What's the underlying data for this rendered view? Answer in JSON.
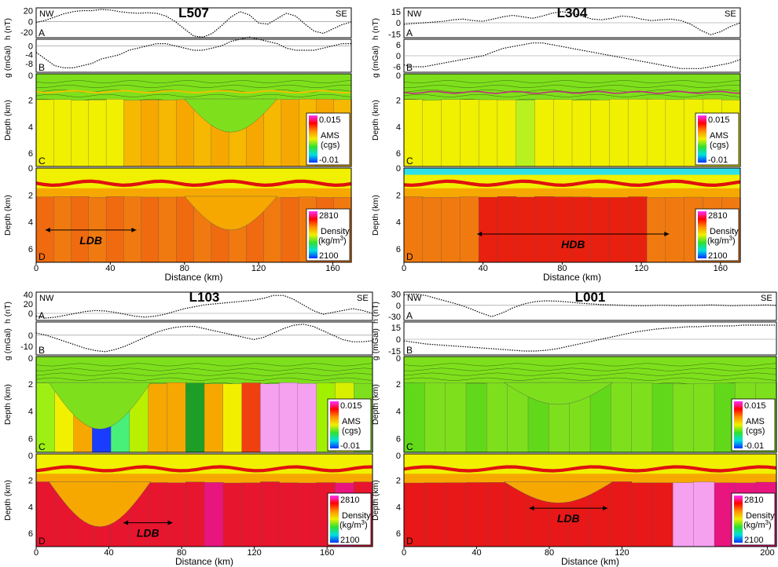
{
  "figure": {
    "x_axis_label": "Distance (km)",
    "y_labels": {
      "mag": "h (nT)",
      "grav": "g (mGal)",
      "depth": "Depth (km)"
    },
    "direction": {
      "left": "NW",
      "right": "SE"
    },
    "panel_letters": [
      "A",
      "B",
      "C",
      "D"
    ],
    "ams_legend": {
      "max": "0.015",
      "title": "AMS",
      "unit": "(cgs)",
      "min": "-0.01"
    },
    "density_legend": {
      "max": "2810",
      "title": "Density",
      "unit": "(kg/m",
      "unit_sup": "3",
      "unit_end": ")",
      "min": "2100"
    },
    "colors": {
      "ams_bg": "#7ee01c",
      "layer_yellow": "#f0f000",
      "layer_orange": "#f6a800",
      "dens_red": "#ee1a10",
      "dens_orange": "#f07a10",
      "dens_magenta": "#e8157e",
      "dens_pink": "#f6a0f0"
    }
  },
  "chart_data": [
    {
      "type": "profile",
      "title": "L507",
      "mag_ticks": [
        "20",
        "0",
        "-20"
      ],
      "grav_ticks": [
        "0",
        "-4",
        "-8"
      ],
      "depth_ticks": [
        "2",
        "4",
        "6"
      ],
      "depth_ticks_d": [
        "0",
        "2",
        "4",
        "6"
      ],
      "x_ticks": [
        "0",
        "40",
        "80",
        "120",
        "160"
      ],
      "mag_nT": [
        -2,
        2,
        8,
        14,
        18,
        20,
        20,
        22,
        21,
        18,
        16,
        15,
        16,
        15,
        10,
        0,
        -14,
        -27,
        -29,
        -22,
        -8,
        8,
        18,
        12,
        -3,
        -5,
        5,
        15,
        10,
        -5,
        -18,
        -22,
        -14,
        -6,
        -1
      ],
      "grav_mGal": [
        -3,
        -6,
        -9,
        -10,
        -10,
        -9,
        -8,
        -6,
        -5,
        -4,
        -2,
        -1,
        0,
        1,
        1,
        0,
        -1,
        -2,
        -2,
        -1,
        0,
        2,
        3,
        4,
        3,
        2,
        1,
        -1,
        -2,
        -2,
        -2,
        -1,
        0,
        1,
        1
      ],
      "zone": {
        "label": "LDB",
        "from_km": 5,
        "to_km": 54,
        "depth_km": 4.6
      }
    },
    {
      "type": "profile",
      "title": "L304",
      "mag_ticks": [
        "15",
        "0",
        "-15"
      ],
      "grav_ticks": [
        "6",
        "0",
        "-6"
      ],
      "depth_ticks": [
        "2",
        "4",
        "6"
      ],
      "depth_ticks_d": [
        "0",
        "2",
        "4",
        "6"
      ],
      "x_ticks": [
        "0",
        "40",
        "80",
        "120",
        "160"
      ],
      "mag_nT": [
        -2,
        -1,
        0,
        1,
        2,
        4,
        5,
        3,
        2,
        5,
        8,
        10,
        8,
        6,
        9,
        13,
        15,
        13,
        9,
        5,
        4,
        6,
        9,
        8,
        5,
        3,
        4,
        5,
        3,
        -2,
        -10,
        -16,
        -12,
        -5,
        0
      ],
      "grav_mGal": [
        -5,
        -6,
        -6,
        -5,
        -4,
        -3,
        -2,
        -1,
        0,
        2,
        4,
        5,
        6,
        7,
        7,
        6,
        5,
        4,
        3,
        2,
        1,
        0,
        -1,
        -2,
        -3,
        -4,
        -5,
        -6,
        -7,
        -7,
        -7,
        -6,
        -5,
        -4,
        -2
      ],
      "zone": {
        "label": "HDB",
        "from_km": 37,
        "to_km": 134,
        "depth_km": 4.9
      }
    },
    {
      "type": "profile",
      "title": "L103",
      "mag_ticks": [
        "40",
        "20",
        "0"
      ],
      "grav_ticks": [
        "0",
        "-10"
      ],
      "depth_ticks": [
        "2",
        "4",
        "6"
      ],
      "depth_ticks_d": [
        "2",
        "4",
        "6"
      ],
      "x_ticks": [
        "0",
        "40",
        "80",
        "120",
        "160"
      ],
      "mag_nT": [
        -6,
        -10,
        -8,
        -4,
        0,
        4,
        6,
        5,
        2,
        -2,
        -6,
        -8,
        -6,
        -2,
        4,
        10,
        14,
        18,
        20,
        22,
        24,
        26,
        28,
        32,
        38,
        38,
        30,
        18,
        6,
        -2,
        2,
        6,
        10,
        6,
        0
      ],
      "grav_mGal": [
        2,
        0,
        -3,
        -6,
        -9,
        -12,
        -14,
        -15,
        -13,
        -10,
        -6,
        -2,
        2,
        5,
        7,
        8,
        8,
        6,
        4,
        2,
        0,
        -2,
        -4,
        -2,
        2,
        6,
        9,
        10,
        8,
        4,
        0,
        -4,
        -6,
        -6,
        -5
      ],
      "zone": {
        "label": "LDB",
        "from_km": 48,
        "to_km": 75,
        "depth_km": 5.2
      }
    },
    {
      "type": "profile",
      "title": "L001",
      "mag_ticks": [
        "30",
        "0",
        "-30"
      ],
      "grav_ticks": [
        "15",
        "0",
        "-15"
      ],
      "depth_ticks": [
        "2",
        "4",
        "6"
      ],
      "depth_ticks_d": [
        "2",
        "4",
        "6"
      ],
      "x_ticks": [
        "0",
        "40",
        "80",
        "120",
        "200"
      ],
      "mag_nT": [
        28,
        30,
        26,
        18,
        10,
        2,
        -8,
        -20,
        -30,
        -20,
        -6,
        4,
        10,
        12,
        11,
        9,
        6,
        4,
        2,
        1,
        0,
        -1,
        -1,
        0,
        0,
        -1,
        0,
        0,
        1,
        0,
        -1,
        0,
        0,
        1,
        0
      ],
      "grav_mGal": [
        -2,
        -4,
        -6,
        -7,
        -8,
        -9,
        -10,
        -11,
        -12,
        -13,
        -14,
        -15,
        -15,
        -14,
        -12,
        -9,
        -6,
        -3,
        0,
        3,
        6,
        9,
        11,
        13,
        14,
        15,
        16,
        16,
        17,
        17,
        17,
        18,
        18,
        18,
        18
      ],
      "zone": {
        "label": "LDB",
        "from_km": 69,
        "to_km": 112,
        "depth_km": 4.1
      }
    }
  ]
}
